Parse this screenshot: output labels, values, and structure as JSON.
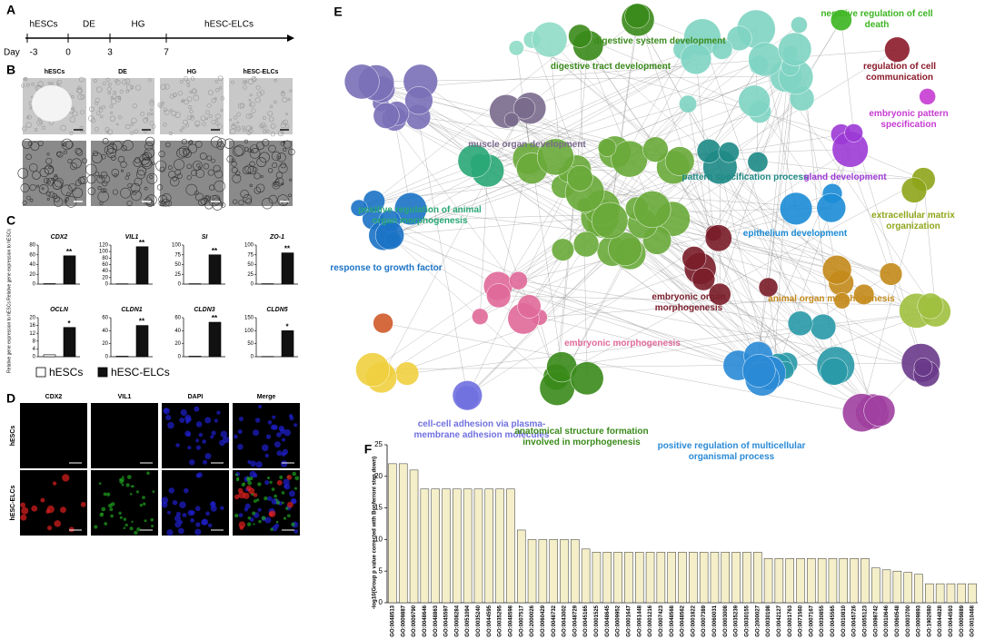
{
  "figure": {
    "panel_letters": [
      "A",
      "B",
      "C",
      "D",
      "E",
      "F"
    ],
    "timeline": {
      "stages": [
        "hESCs",
        "DE",
        "HG",
        "hESC-ELCs"
      ],
      "day_label": "Day",
      "days": [
        "-3",
        "0",
        "3",
        "7"
      ]
    },
    "micrographs": {
      "columns": [
        "hESCs",
        "DE",
        "HG",
        "hESC-ELCs"
      ]
    },
    "expression_legend": [
      {
        "name": "hESCs",
        "color": "#ffffff"
      },
      {
        "name": "hESC-ELCs",
        "color": "#111111"
      }
    ],
    "expression_ylabel": "Relative gene expression to hESCs",
    "immunofluorescence": {
      "columns": [
        {
          "name": "CDX2",
          "color": "#e02020"
        },
        {
          "name": "VIL1",
          "color": "#20a020"
        },
        {
          "name": "DAPI",
          "color": "#2020d0"
        },
        {
          "name": "Merge",
          "color": "#000000"
        }
      ],
      "rows": [
        "hESCs",
        "hESC-ELCs"
      ]
    },
    "network": {
      "clusters": [
        {
          "label": "digestive tract development",
          "color": "#3a8a1a"
        },
        {
          "label": "digestive system development",
          "color": "#3a8a1a"
        },
        {
          "label": "negative regulation of cell death",
          "color": "#3cb521"
        },
        {
          "label": "regulation of cell communication",
          "color": "#8b1a2b"
        },
        {
          "label": "embryonic pattern specification",
          "color": "#c73bd3"
        },
        {
          "label": "muscle organ development",
          "color": "#7a6a8c"
        },
        {
          "label": "pattern specification process",
          "color": "#1e8a86"
        },
        {
          "label": "gland development",
          "color": "#9d3ad6"
        },
        {
          "label": "positive regulation of animal organ morphogenesis",
          "color": "#2aa876"
        },
        {
          "label": "extracellular matrix organization",
          "color": "#8ea61a"
        },
        {
          "label": "epithelium development",
          "color": "#1b8cd6"
        },
        {
          "label": "response to growth factor",
          "color": "#1b73c6"
        },
        {
          "label": "embryonic organ morphogenesis",
          "color": "#7a1d2a"
        },
        {
          "label": "animal organ morphogenesis",
          "color": "#c48a1a"
        },
        {
          "label": "embryonic morphogenesis",
          "color": "#e06a9a"
        },
        {
          "label": "cell-cell adhesion via plasma-membrane adhesion molecules",
          "color": "#7070e0"
        },
        {
          "label": "anatomical structure formation involved in morphogenesis",
          "color": "#3a8a1a"
        },
        {
          "label": "positive regulation of multicellular organismal process",
          "color": "#2a8ad6"
        }
      ]
    }
  },
  "chart_data": [
    {
      "type": "bar",
      "title": "CDX2",
      "values": [
        1,
        58
      ],
      "annotation": "**",
      "ylim": [
        0,
        80
      ],
      "yticks": [
        0,
        20,
        40,
        60,
        80
      ]
    },
    {
      "type": "bar",
      "title": "VIL1",
      "values": [
        1,
        115
      ],
      "annotation": "**",
      "ylim": [
        0,
        120
      ],
      "yticks": [
        0,
        20,
        40,
        60,
        80,
        100,
        120
      ]
    },
    {
      "type": "bar",
      "title": "SI",
      "values": [
        1,
        75
      ],
      "annotation": "**",
      "ylim": [
        0,
        100
      ],
      "yticks": [
        0,
        25,
        50,
        75,
        100
      ]
    },
    {
      "type": "bar",
      "title": "ZO-1",
      "values": [
        1,
        80
      ],
      "annotation": "**",
      "ylim": [
        0,
        100
      ],
      "yticks": [
        0,
        25,
        50,
        75,
        100
      ]
    },
    {
      "type": "bar",
      "title": "OCLN",
      "values": [
        1,
        15
      ],
      "annotation": "*",
      "ylim": [
        0,
        20
      ],
      "yticks": [
        0,
        4,
        8,
        12,
        16,
        20
      ]
    },
    {
      "type": "bar",
      "title": "CLDN1",
      "values": [
        1,
        48
      ],
      "annotation": "**",
      "ylim": [
        0,
        60
      ],
      "yticks": [
        0,
        20,
        40,
        60
      ]
    },
    {
      "type": "bar",
      "title": "CLDN3",
      "values": [
        1,
        53
      ],
      "annotation": "**",
      "ylim": [
        0,
        60
      ],
      "yticks": [
        0,
        20,
        40,
        60
      ]
    },
    {
      "type": "bar",
      "title": "CLDN5",
      "values": [
        1,
        100
      ],
      "annotation": "*",
      "ylim": [
        0,
        150
      ],
      "yticks": [
        0,
        50,
        100,
        150
      ]
    },
    {
      "type": "bar",
      "ylabel": "-log10(Group p value corrected with Bonferroni step down)",
      "color": "#f5efc9",
      "categories": [
        "GO:0048513",
        "GO:0009887",
        "GO:0009790",
        "GO:0048646",
        "GO:0048863",
        "GO:0045597",
        "GO:0008284",
        "GO:0051094",
        "GO:0035240",
        "GO:0044595",
        "GO:0035295",
        "GO:0048598",
        "GO:0007517",
        "GO:2000026",
        "GO:0060429",
        "GO:0048732",
        "GO:0043002",
        "GO:0048729",
        "GO:0045165",
        "GO:0001525",
        "GO:0048645",
        "GO:0009952",
        "GO:0001647",
        "GO:0061448",
        "GO:0001216",
        "GO:0007423",
        "GO:0048568",
        "GO:0048562",
        "GO:0001822",
        "GO:0007389",
        "GO:0060031",
        "GO:0003008",
        "GO:0035239",
        "GO:0030155",
        "GO:2000027",
        "GO:0030198",
        "GO:0042127",
        "GO:0001763",
        "GO:0071560",
        "GO:0007167",
        "GO:0030855",
        "GO:0045565",
        "GO:0010810",
        "GO:0045726",
        "GO:0055123",
        "GO:0098742",
        "GO:0010646",
        "GO:0060548",
        "GO:0003700",
        "GO:0009893",
        "GO:1902680",
        "GO:0044828",
        "GO:0044593",
        "GO:0009889",
        "GO:0010468"
      ],
      "values": [
        22,
        22,
        21,
        18,
        18,
        18,
        18,
        18,
        18,
        18,
        18,
        18,
        11.5,
        10,
        10,
        10,
        10,
        10,
        8.5,
        8,
        8,
        8,
        8,
        8,
        8,
        8,
        8,
        8,
        8,
        8,
        8,
        8,
        8,
        8,
        8,
        7,
        7,
        7,
        7,
        7,
        7,
        7,
        7,
        7,
        7,
        5.5,
        5.2,
        5,
        4.8,
        4.5,
        3,
        3,
        3,
        3,
        3
      ],
      "ylim": [
        0,
        25
      ],
      "yticks": [
        0,
        5,
        10,
        15,
        20,
        25
      ]
    }
  ]
}
